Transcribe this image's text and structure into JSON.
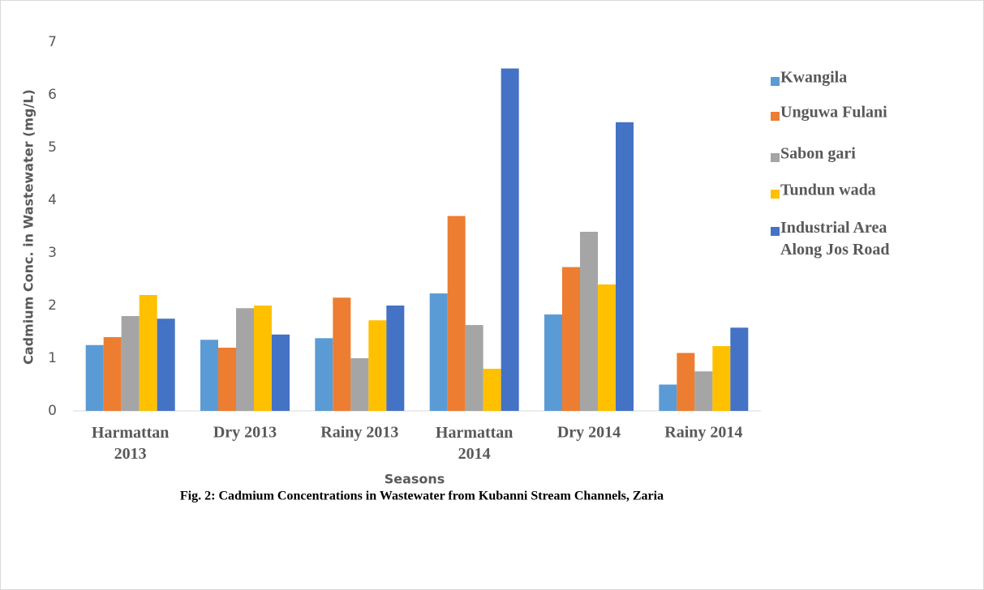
{
  "chart_data": {
    "type": "bar",
    "caption": "Fig. 2: Cadmium Concentrations in Wastewater from Kubanni Stream Channels, Zaria",
    "x_label": "Seasons",
    "y_label": "Cadmium Conc. in Wastewater (mg/L)",
    "categories": [
      "Harmattan\n2013",
      "Dry 2013",
      "Rainy 2013",
      "Harmattan\n2014",
      "Dry 2014",
      "Rainy 2014"
    ],
    "series": [
      {
        "name": "Kwangila",
        "color": "#5b9bd5",
        "values": [
          1.25,
          1.35,
          1.38,
          2.23,
          1.83,
          0.5
        ]
      },
      {
        "name": "Unguwa Fulani",
        "color": "#ed7d31",
        "values": [
          1.4,
          1.2,
          2.15,
          3.7,
          2.73,
          1.1
        ]
      },
      {
        "name": "Sabon gari",
        "color": "#a5a5a5",
        "values": [
          1.8,
          1.95,
          1.0,
          1.63,
          3.4,
          0.75
        ]
      },
      {
        "name": "Tundun wada",
        "color": "#ffc000",
        "values": [
          2.2,
          2.0,
          1.72,
          0.8,
          2.4,
          1.23
        ]
      },
      {
        "name": "Industrial Area\nAlong Jos Road",
        "color": "#4472c4",
        "values": [
          1.75,
          1.45,
          2.0,
          6.5,
          5.48,
          1.58
        ]
      }
    ],
    "ylim": [
      0,
      7
    ],
    "yticks": [
      0,
      1,
      2,
      3,
      4,
      5,
      6,
      7
    ],
    "grid": false,
    "legend": "right"
  }
}
